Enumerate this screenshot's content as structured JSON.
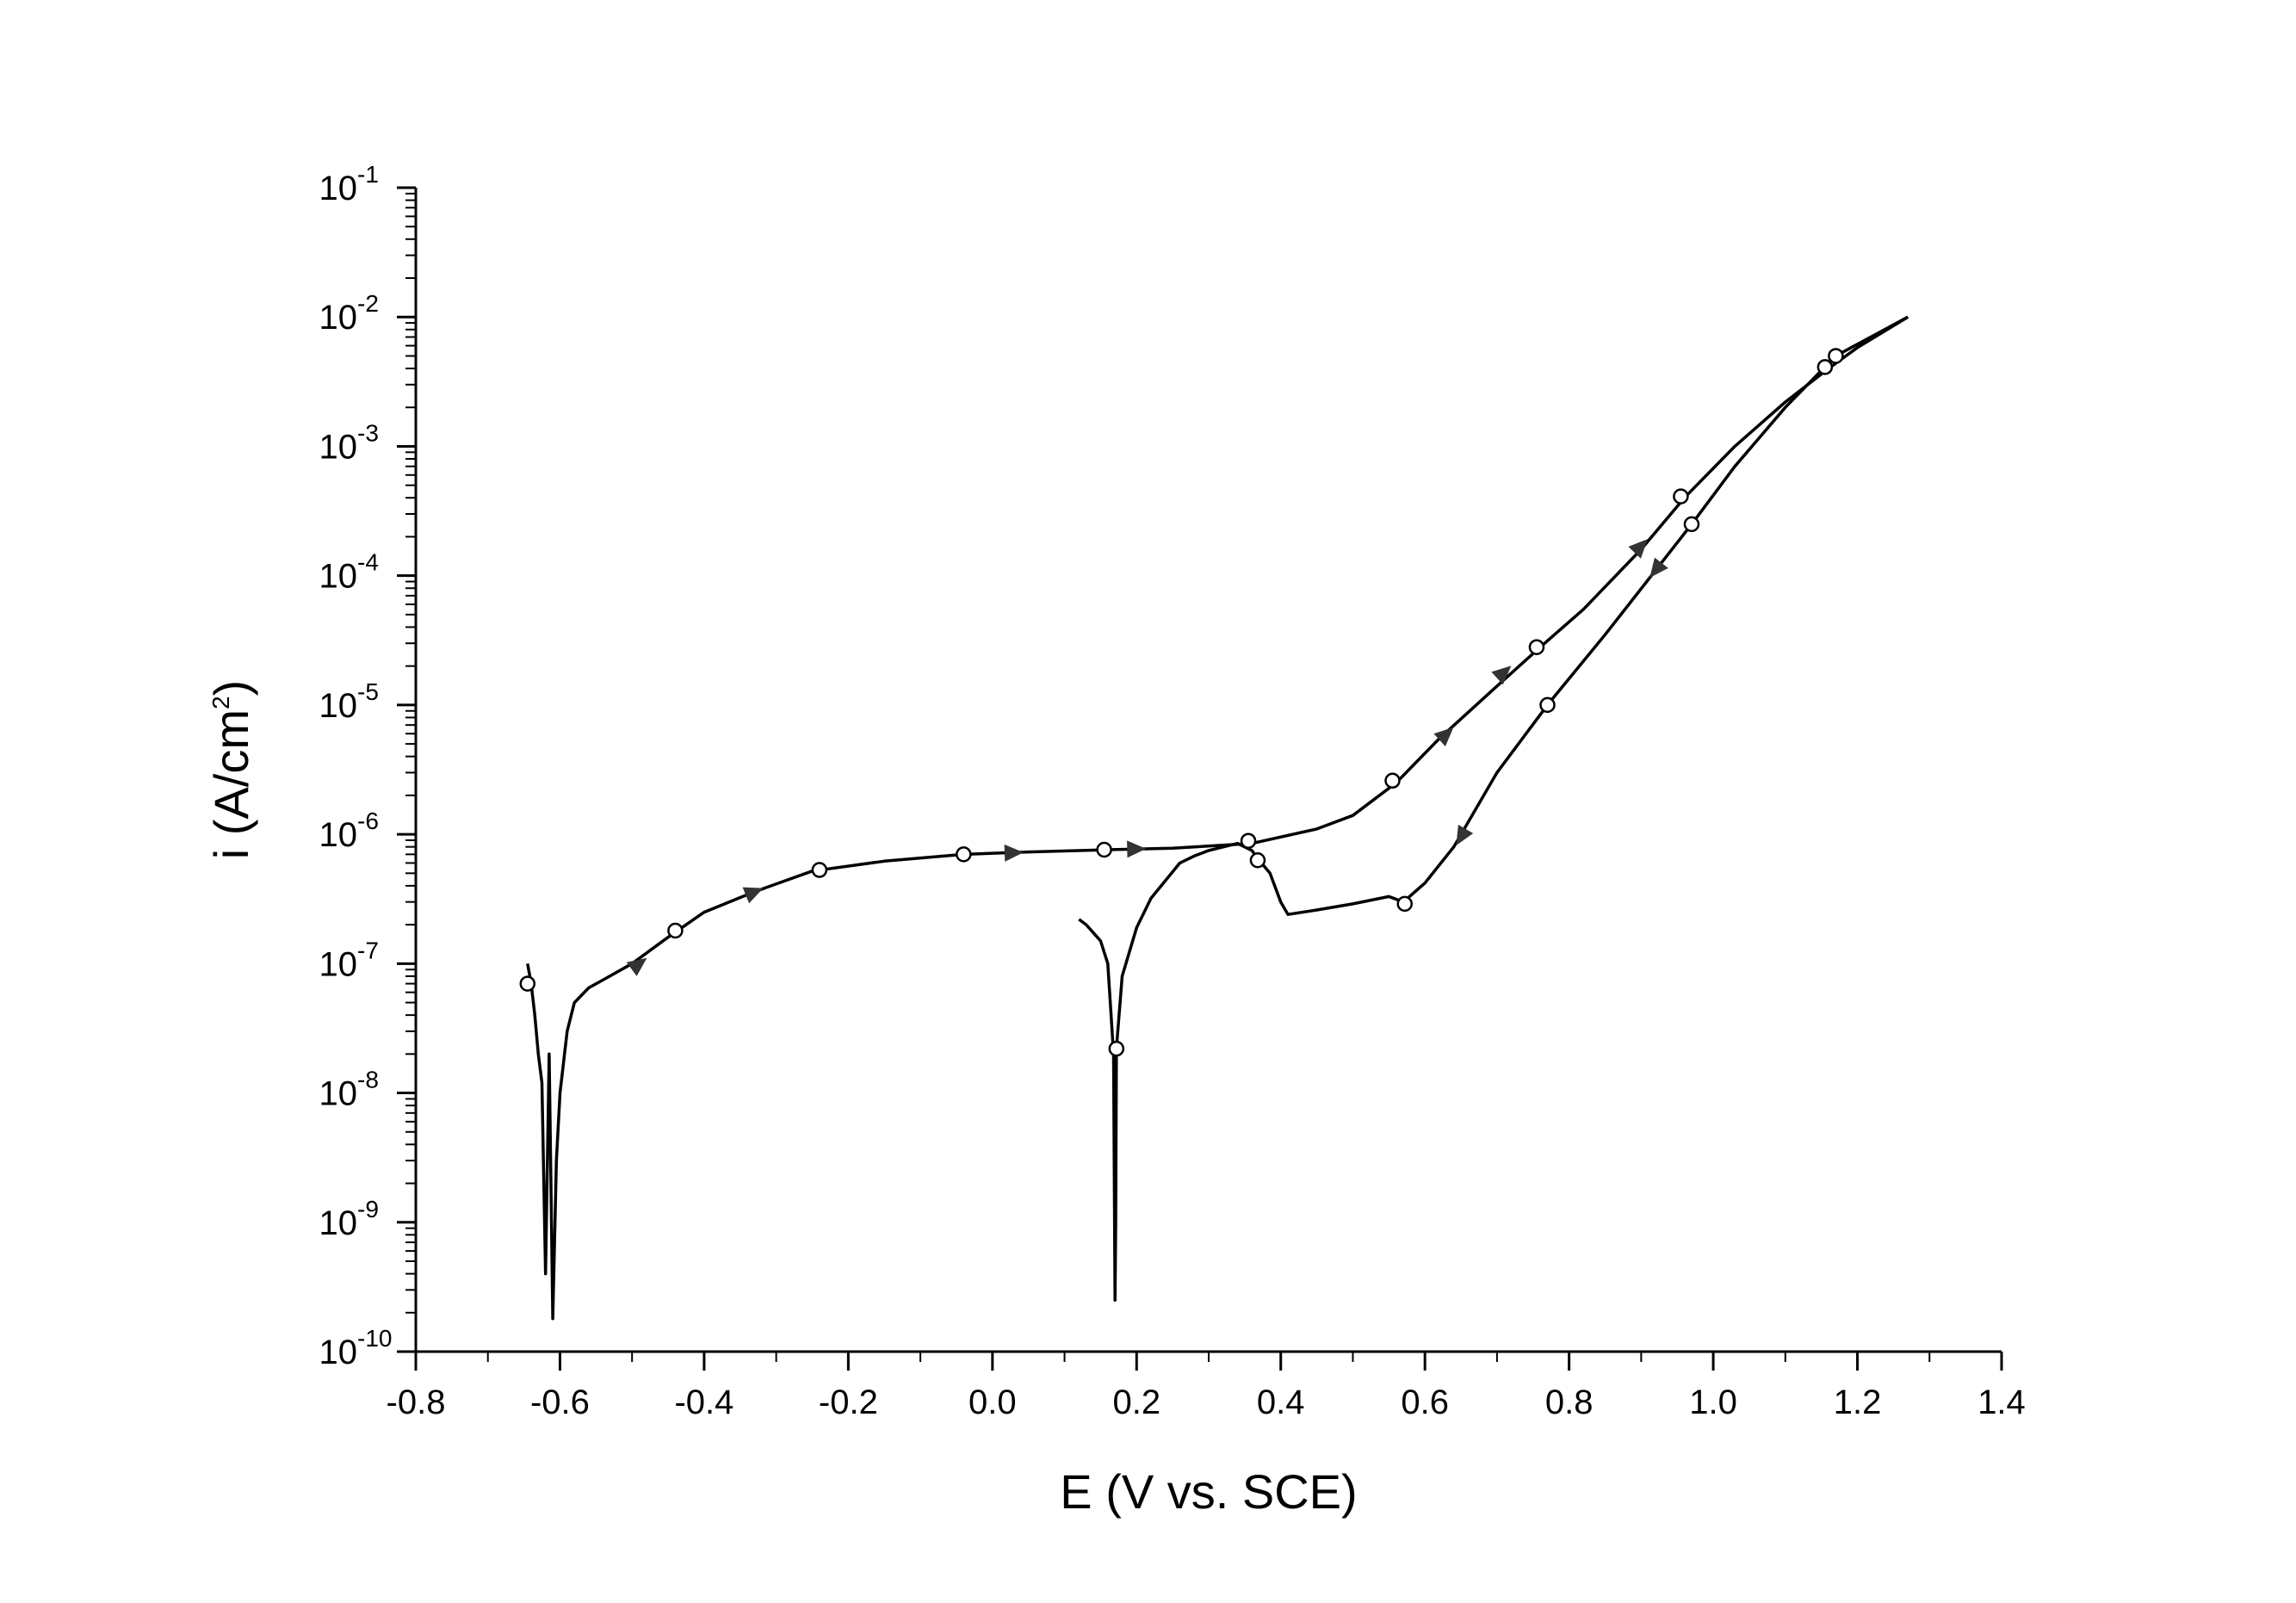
{
  "chart_data": {
    "type": "line",
    "xlabel": "E (V vs. SCE)",
    "ylabel_main": "i (A/cm",
    "ylabel_sup": "2",
    "ylabel_tail": ")",
    "xlim": [
      -0.8,
      1.4
    ],
    "ylim": [
      1e-10,
      0.1
    ],
    "yscale": "log",
    "grid": false,
    "legend": "none",
    "x_ticks": [
      "-0.8",
      "-0.6",
      "-0.4",
      "-0.2",
      "0.0",
      "0.2",
      "0.4",
      "0.6",
      "0.8",
      "1.0",
      "1.2",
      "1.4"
    ],
    "x_tick_values": [
      -0.8,
      -0.6,
      -0.4,
      -0.2,
      0.0,
      0.2,
      0.4,
      0.6,
      0.8,
      1.0,
      1.2,
      1.4
    ],
    "y_ticks": [
      {
        "base": "10",
        "exp": "-1",
        "value": 0.1
      },
      {
        "base": "10",
        "exp": "-2",
        "value": 0.01
      },
      {
        "base": "10",
        "exp": "-3",
        "value": 0.001
      },
      {
        "base": "10",
        "exp": "-4",
        "value": 0.0001
      },
      {
        "base": "10",
        "exp": "-5",
        "value": 1e-05
      },
      {
        "base": "10",
        "exp": "-6",
        "value": 1e-06
      },
      {
        "base": "10",
        "exp": "-7",
        "value": 1e-07
      },
      {
        "base": "10",
        "exp": "-8",
        "value": 1e-08
      },
      {
        "base": "10",
        "exp": "-9",
        "value": 1e-09
      },
      {
        "base": "10",
        "exp": "-10",
        "value": 1e-10
      }
    ],
    "series": [
      {
        "direction": "forward",
        "points": [
          [
            -0.645,
            1e-07
          ],
          [
            -0.64,
            7e-08
          ],
          [
            -0.635,
            4e-08
          ],
          [
            -0.63,
            2e-08
          ],
          [
            -0.625,
            1.2e-08
          ],
          [
            -0.62,
            4e-10
          ],
          [
            -0.615,
            2e-08
          ],
          [
            -0.61,
            1.8e-10
          ],
          [
            -0.605,
            3e-09
          ],
          [
            -0.6,
            1e-08
          ],
          [
            -0.59,
            3e-08
          ],
          [
            -0.58,
            5e-08
          ],
          [
            -0.56,
            6.5e-08
          ],
          [
            -0.54,
            7.5e-08
          ],
          [
            -0.5,
            1e-07
          ],
          [
            -0.45,
            1.6e-07
          ],
          [
            -0.4,
            2.5e-07
          ],
          [
            -0.33,
            3.6e-07
          ],
          [
            -0.25,
            5.2e-07
          ],
          [
            -0.15,
            6.2e-07
          ],
          [
            -0.04,
            7e-07
          ],
          [
            0.05,
            7.3e-07
          ],
          [
            0.16,
            7.6e-07
          ],
          [
            0.25,
            7.8e-07
          ],
          [
            0.36,
            8.5e-07
          ],
          [
            0.45,
            1.1e-06
          ],
          [
            0.5,
            1.4e-06
          ],
          [
            0.56,
            2.5e-06
          ],
          [
            0.62,
            5.5e-06
          ],
          [
            0.7,
            1.4e-05
          ],
          [
            0.76,
            2.8e-05
          ],
          [
            0.82,
            5.5e-05
          ],
          [
            0.9,
            0.00016
          ],
          [
            0.96,
            0.0004
          ],
          [
            1.03,
            0.001
          ],
          [
            1.1,
            0.0022
          ],
          [
            1.16,
            0.004
          ],
          [
            1.2,
            0.0058
          ],
          [
            1.27,
            0.01
          ]
        ]
      },
      {
        "direction": "reverse",
        "points": [
          [
            1.27,
            0.01
          ],
          [
            1.17,
            0.005
          ],
          [
            1.1,
            0.002
          ],
          [
            1.03,
            0.0007
          ],
          [
            0.97,
            0.00025
          ],
          [
            0.92,
            0.00011
          ],
          [
            0.85,
            3.5e-05
          ],
          [
            0.77,
            1e-05
          ],
          [
            0.7,
            3e-06
          ],
          [
            0.64,
            8e-07
          ],
          [
            0.6,
            4.2e-07
          ],
          [
            0.57,
            3e-07
          ],
          [
            0.55,
            3.3e-07
          ],
          [
            0.5,
            2.9e-07
          ],
          [
            0.45,
            2.6e-07
          ],
          [
            0.41,
            2.4e-07
          ],
          [
            0.4,
            3e-07
          ],
          [
            0.385,
            5e-07
          ],
          [
            0.37,
            6.3e-07
          ],
          [
            0.36,
            7.5e-07
          ],
          [
            0.34,
            8.5e-07
          ],
          [
            0.3,
            7.5e-07
          ],
          [
            0.28,
            6.8e-07
          ],
          [
            0.26,
            6e-07
          ],
          [
            0.22,
            3.2e-07
          ],
          [
            0.2,
            1.9e-07
          ],
          [
            0.18,
            8e-08
          ],
          [
            0.172,
            2.2e-08
          ],
          [
            0.171,
            1e-09
          ],
          [
            0.17,
            2.5e-10
          ],
          [
            0.168,
            2e-08
          ],
          [
            0.16,
            1e-07
          ],
          [
            0.15,
            1.5e-07
          ],
          [
            0.13,
            2e-07
          ],
          [
            0.12,
            2.2e-07
          ]
        ]
      }
    ],
    "markers": [
      [
        -0.645,
        7e-08
      ],
      [
        -0.44,
        1.8e-07
      ],
      [
        -0.24,
        5.3e-07
      ],
      [
        -0.04,
        7e-07
      ],
      [
        0.155,
        7.6e-07
      ],
      [
        0.355,
        8.9e-07
      ],
      [
        0.368,
        6.3e-07
      ],
      [
        0.172,
        2.2e-08
      ],
      [
        0.572,
        2.9e-07
      ],
      [
        0.555,
        2.6e-06
      ],
      [
        0.755,
        2.8e-05
      ],
      [
        0.77,
        1e-05
      ],
      [
        0.955,
        0.00041
      ],
      [
        0.97,
        0.00025
      ],
      [
        1.155,
        0.0041
      ],
      [
        1.17,
        0.005
      ]
    ],
    "arrows": [
      {
        "x": -0.49,
        "y": 1e-07,
        "dir": "forward"
      },
      {
        "x": -0.33,
        "y": 3.6e-07,
        "dir": "forward"
      },
      {
        "x": 0.03,
        "y": 7.2e-07,
        "dir": "forward"
      },
      {
        "x": 0.2,
        "y": 7.7e-07,
        "dir": "forward"
      },
      {
        "x": 0.63,
        "y": 6e-06,
        "dir": "forward"
      },
      {
        "x": 0.71,
        "y": 1.8e-05,
        "dir": "forward"
      },
      {
        "x": 0.9,
        "y": 0.00017,
        "dir": "forward"
      },
      {
        "x": 0.92,
        "y": 0.00011,
        "dir": "reverse"
      },
      {
        "x": 0.65,
        "y": 9.5e-07,
        "dir": "reverse"
      }
    ]
  }
}
